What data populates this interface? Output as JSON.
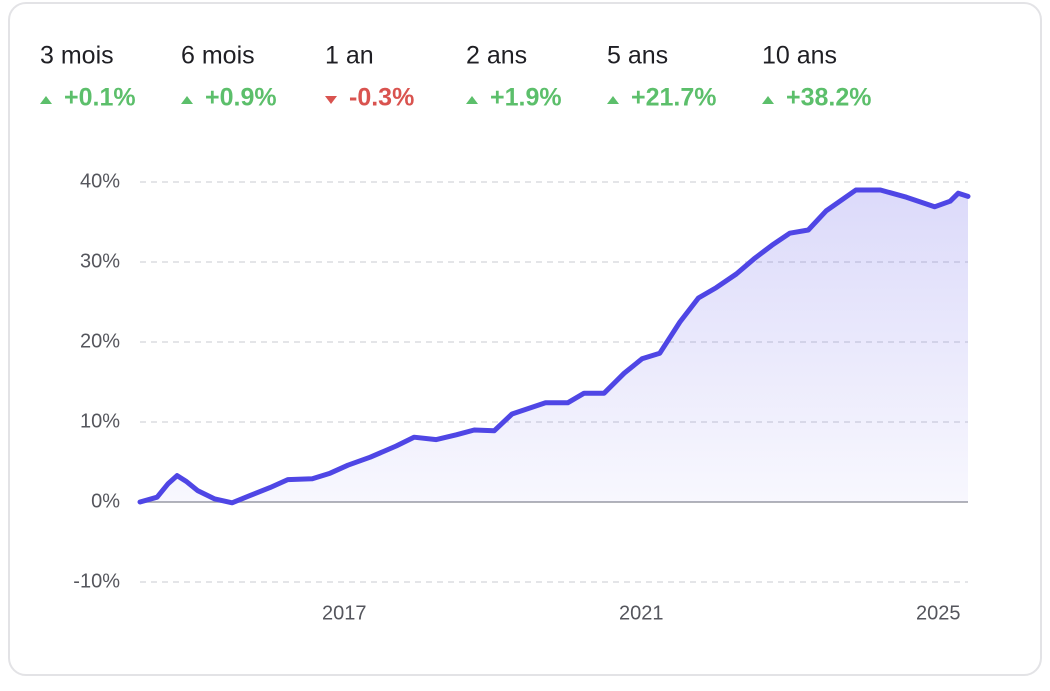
{
  "stats": [
    {
      "label": "3 mois",
      "value": 0.1,
      "value_label": "+0.1%"
    },
    {
      "label": "6 mois",
      "value": 0.9,
      "value_label": "+0.9%"
    },
    {
      "label": "1 an",
      "value": -0.3,
      "value_label": "-0.3%"
    },
    {
      "label": "2 ans",
      "value": 1.9,
      "value_label": "+1.9%"
    },
    {
      "label": "5 ans",
      "value": 21.7,
      "value_label": "+21.7%"
    },
    {
      "label": "10 ans",
      "value": 38.2,
      "value_label": "+38.2%"
    }
  ],
  "chart_data": {
    "type": "area",
    "x": [
      2014.25,
      2014.48,
      2014.63,
      2014.75,
      2014.87,
      2015.03,
      2015.25,
      2015.49,
      2015.73,
      2016.0,
      2016.24,
      2016.57,
      2016.81,
      2017.05,
      2017.35,
      2017.7,
      2017.94,
      2018.24,
      2018.51,
      2018.75,
      2019.02,
      2019.26,
      2019.71,
      2020.01,
      2020.23,
      2020.5,
      2020.77,
      2021.01,
      2021.25,
      2021.52,
      2021.77,
      2022.01,
      2022.28,
      2022.52,
      2022.76,
      2023.0,
      2023.25,
      2023.49,
      2023.89,
      2024.22,
      2024.57,
      2024.95,
      2025.16,
      2025.27,
      2025.4
    ],
    "series": [
      {
        "color": "#4f46e5",
        "values": [
          0,
          0.6,
          2.3,
          3.3,
          2.6,
          1.4,
          0.4,
          -0.1,
          0.8,
          1.8,
          2.8,
          2.9,
          3.6,
          4.6,
          5.6,
          7.0,
          8.1,
          7.8,
          8.4,
          9.0,
          8.9,
          11.0,
          12.4,
          12.4,
          13.6,
          13.6,
          16.1,
          17.9,
          18.6,
          22.5,
          25.5,
          26.8,
          28.5,
          30.4,
          32.1,
          33.6,
          34.0,
          36.4,
          39.0,
          39.0,
          38.1,
          36.9,
          37.6,
          38.6,
          38.2
        ]
      }
    ],
    "xlim": [
      2014.25,
      2025.4
    ],
    "xticks": [
      2017,
      2021,
      2025
    ],
    "ylim": [
      -10,
      40
    ],
    "yticks": [
      {
        "value": -10,
        "label": "-10%"
      },
      {
        "value": 0,
        "label": "0%"
      },
      {
        "value": 10,
        "label": "10%"
      },
      {
        "value": 20,
        "label": "20%"
      },
      {
        "value": 30,
        "label": "30%"
      },
      {
        "value": 40,
        "label": "40%"
      }
    ],
    "grid": true
  }
}
